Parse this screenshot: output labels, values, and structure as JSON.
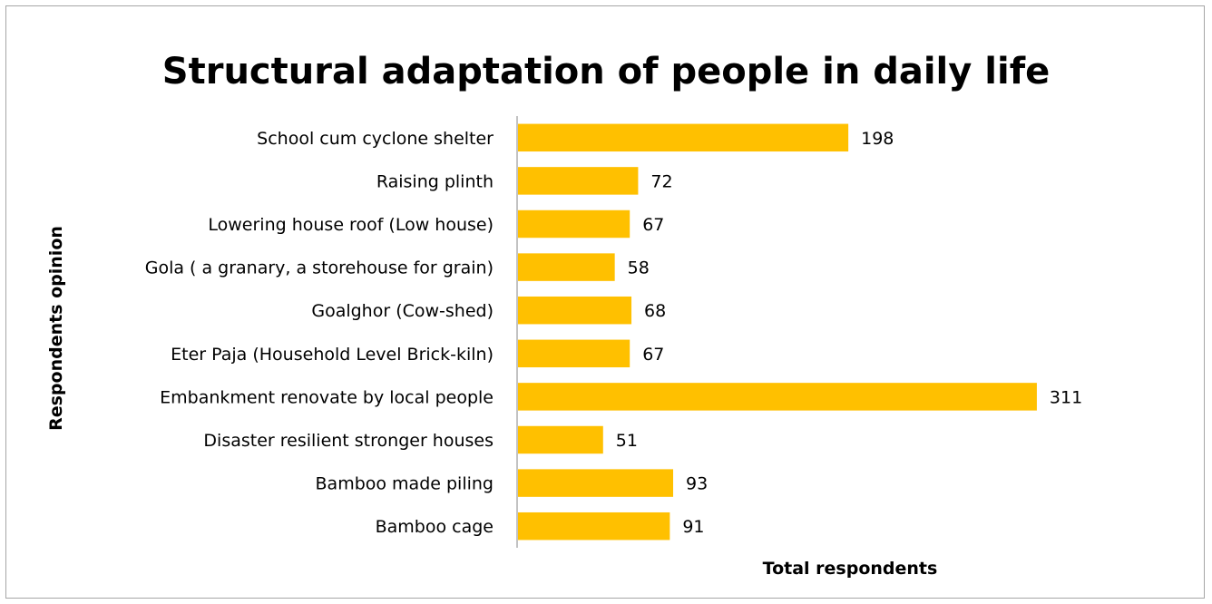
{
  "chart_data": {
    "type": "bar",
    "orientation": "horizontal",
    "title": "Structural adaptation of people in daily life",
    "xlabel": "Total respondents",
    "ylabel": "Respondents opinion",
    "categories": [
      "School cum cyclone shelter",
      "Raising plinth",
      "Lowering house roof (Low house)",
      "Gola ( a granary, a storehouse for grain)",
      "Goalghor (Cow-shed)",
      "Eter Paja (Household Level Brick-kiln)",
      "Embankment renovate by local people",
      "Disaster resilient stronger houses",
      "Bamboo made piling",
      "Bamboo cage"
    ],
    "values": [
      198,
      72,
      67,
      58,
      68,
      67,
      311,
      51,
      93,
      91
    ],
    "xlim": [
      0,
      311
    ],
    "grid": false,
    "legend": "none",
    "bar_color": "#ffc000",
    "axis_color": "#868686"
  }
}
